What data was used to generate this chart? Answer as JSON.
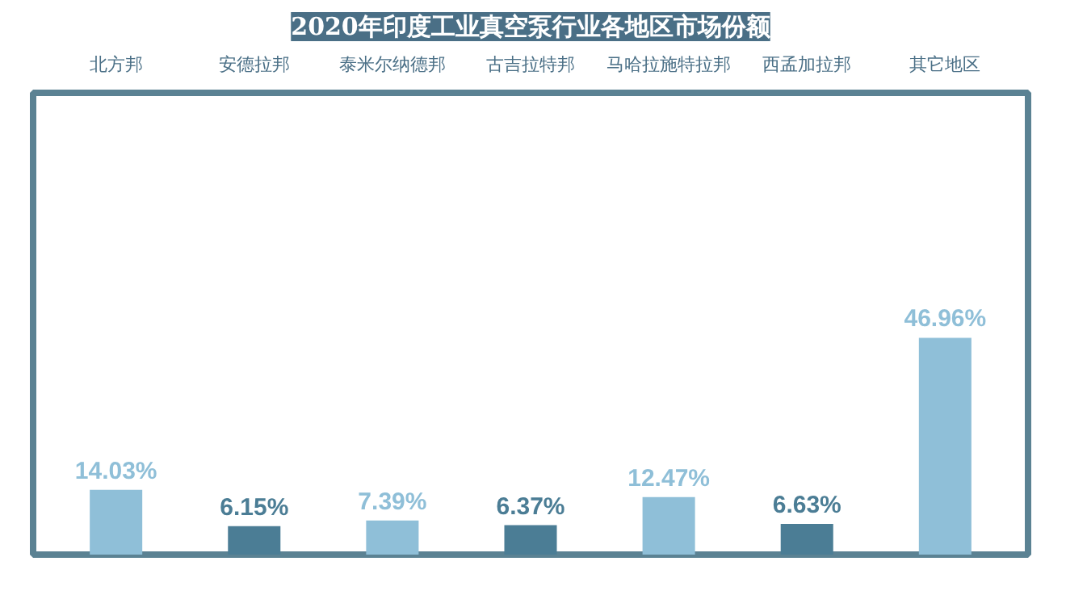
{
  "chart_data": {
    "type": "bar",
    "title": "2020年印度工业真空泵行业各地区市场份额",
    "categories": [
      "北方邦",
      "安德拉邦",
      "泰米尔纳德邦",
      "古吉拉特邦",
      "马哈拉施特拉邦",
      "西孟加拉邦",
      "其它地区"
    ],
    "values": [
      14.03,
      6.15,
      7.39,
      6.37,
      12.47,
      6.63,
      46.96
    ],
    "value_labels": [
      "14.03%",
      "6.15%",
      "7.39%",
      "6.37%",
      "12.47%",
      "6.63%",
      "46.96%"
    ],
    "colors": [
      "#8fbfd8",
      "#4b7d95",
      "#8fbfd8",
      "#4b7d95",
      "#8fbfd8",
      "#4b7d95",
      "#8fbfd8"
    ],
    "ylim": [
      0,
      100
    ]
  }
}
